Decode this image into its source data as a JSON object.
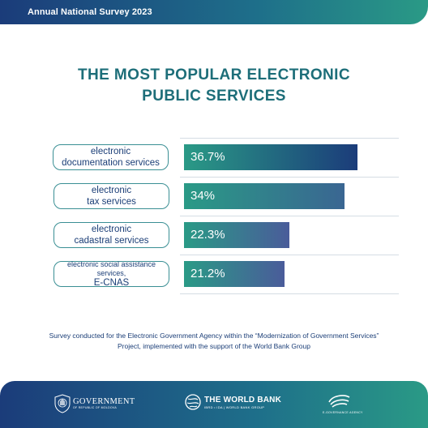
{
  "header": {
    "survey_label": "Annual National Survey 2023"
  },
  "title": {
    "line1": "THE MOST POPULAR ELECTRONIC",
    "line2": "PUBLIC SERVICES"
  },
  "chart_data": {
    "type": "bar",
    "orientation": "horizontal",
    "categories": [
      "electronic documentation services",
      "electronic tax services",
      "electronic cadastral services",
      "electronic social assistance services, E-CNAS"
    ],
    "category_lines": [
      [
        "electronic",
        "documentation services"
      ],
      [
        "electronic",
        "tax services"
      ],
      [
        "electronic",
        "cadastral services"
      ],
      [
        "electronic social assistance services,",
        "E-CNAS"
      ]
    ],
    "values": [
      36.7,
      34,
      22.3,
      21.2
    ],
    "value_labels": [
      "36.7%",
      "34%",
      "22.3%",
      "21.2%"
    ],
    "unit": "%",
    "xlim": [
      0,
      40
    ],
    "grid": false,
    "legend": "none",
    "bar_colors": [
      [
        "#2a9a86",
        "#1b3c7a"
      ],
      [
        "#2a9a86",
        "#3a6692"
      ],
      [
        "#2a9a86",
        "#4a5c9a"
      ],
      [
        "#2a9a86",
        "#4a5c9a"
      ]
    ]
  },
  "footnote": {
    "line1": "Survey conducted for the Electronic Government Agency within the “Modernization of Government Services”",
    "line2": "Project, implemented with the support of the World Bank Group"
  },
  "logos": {
    "government": {
      "name": "GOVERNMENT",
      "sub": "OF REPUBLIC OF MOLDOVA",
      "icon": "seal-icon"
    },
    "world_bank": {
      "name": "THE WORLD BANK",
      "sub": "IBRD • IDA | WORLD BANK GROUP",
      "icon": "globe-icon"
    },
    "ega": {
      "name": "E-GOVERNANCE AGENCY",
      "icon": "egov-mark-icon"
    }
  },
  "colors": {
    "brand_dark": "#1b3c7a",
    "brand_teal": "#2a9a86",
    "title_teal": "#1d6e79",
    "label_text": "#1b3e77"
  }
}
